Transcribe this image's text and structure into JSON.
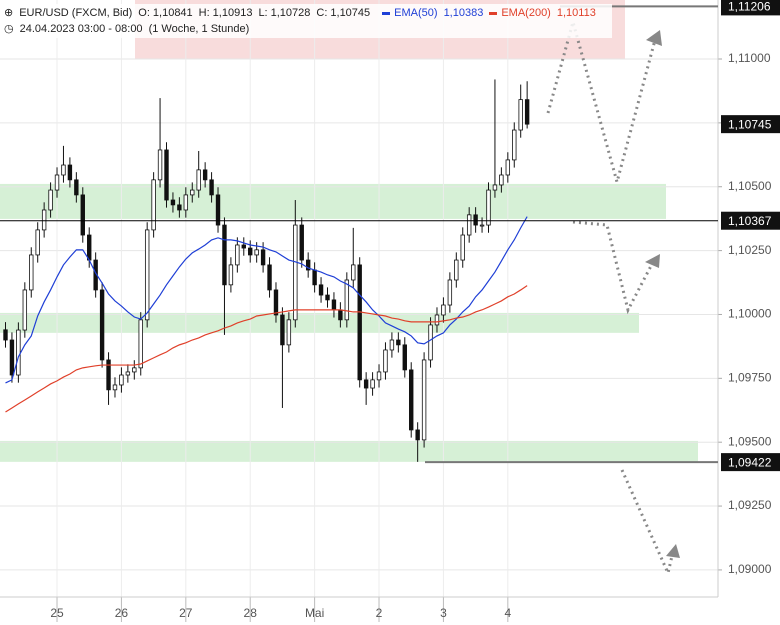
{
  "chart_data": {
    "type": "candlestick",
    "header": {
      "symbol": "EUR/USD (FXCM, Bid)",
      "ohlc": [
        {
          "key": "O:",
          "value": "1,10841"
        },
        {
          "key": "H:",
          "value": "1,10913"
        },
        {
          "key": "L:",
          "value": "1,10728"
        },
        {
          "key": "C:",
          "value": "1,10745"
        }
      ],
      "date": "24.04.2023 03:00 - 08:00",
      "interval": "(1 Woche, 1 Stunde)"
    },
    "categories": [
      null,
      null,
      null,
      null,
      null,
      null,
      null,
      null,
      "25",
      null,
      null,
      null,
      null,
      null,
      null,
      null,
      null,
      null,
      "26",
      null,
      null,
      null,
      null,
      null,
      null,
      null,
      null,
      null,
      "27",
      null,
      null,
      null,
      null,
      null,
      null,
      null,
      null,
      null,
      "28",
      null,
      null,
      null,
      null,
      null,
      null,
      null,
      null,
      null,
      "Mai",
      null,
      null,
      null,
      null,
      null,
      null,
      null,
      null,
      null,
      "2",
      null,
      null,
      null,
      null,
      null,
      null,
      null,
      null,
      null,
      "3",
      null,
      null,
      null,
      null,
      null,
      null,
      null,
      null,
      null,
      "4",
      null,
      null,
      null
    ],
    "open": [
      1.0994,
      1.099,
      1.09763,
      1.09939,
      1.10096,
      1.10233,
      1.10331,
      1.10409,
      1.10487,
      1.10546,
      1.10585,
      1.10527,
      1.10468,
      1.10311,
      1.10213,
      1.10096,
      1.09822,
      1.09705,
      1.09724,
      1.09763,
      1.09775,
      1.09791,
      1.09979,
      1.10331,
      1.10527,
      1.10644,
      1.10448,
      1.10429,
      1.10409,
      1.10468,
      1.10487,
      1.10566,
      1.10527,
      1.10468,
      1.1035,
      1.10116,
      1.10194,
      1.10272,
      1.1026,
      1.10233,
      1.10253,
      1.10194,
      1.10096,
      1.09998,
      1.09881,
      1.09979,
      1.1035,
      1.10213,
      1.10174,
      1.10116,
      1.10076,
      1.10057,
      1.10018,
      1.09979,
      1.10135,
      1.10194,
      1.09744,
      1.09712,
      1.09744,
      1.09775,
      1.09861,
      1.099,
      1.09881,
      1.09783,
      1.09548,
      1.09509,
      1.09822,
      1.09959,
      1.09998,
      1.10037,
      1.10135,
      1.10213,
      1.10311,
      1.1039,
      1.1035,
      1.1035,
      1.10487,
      1.10507,
      1.10546,
      1.10605,
      1.10722,
      1.10841
    ],
    "high": [
      1.0997,
      1.0993,
      1.09969,
      1.10126,
      1.10263,
      1.10361,
      1.10439,
      1.10517,
      1.10576,
      1.1066,
      1.10615,
      1.10557,
      1.10498,
      1.10341,
      1.10243,
      1.10126,
      1.09852,
      1.09754,
      1.09793,
      1.09805,
      1.09821,
      1.10009,
      1.10361,
      1.10557,
      1.10847,
      1.10674,
      1.10478,
      1.10459,
      1.10498,
      1.10517,
      1.1064,
      1.10596,
      1.10557,
      1.10498,
      1.1038,
      1.10224,
      1.10302,
      1.10302,
      1.1029,
      1.10283,
      1.10283,
      1.10224,
      1.10126,
      1.10028,
      1.10009,
      1.10448,
      1.1038,
      1.10243,
      1.10204,
      1.10146,
      1.10106,
      1.10087,
      1.10048,
      1.10165,
      1.10339,
      1.10224,
      1.09774,
      1.09774,
      1.09805,
      1.09891,
      1.0993,
      1.0993,
      1.09911,
      1.09813,
      1.09578,
      1.09852,
      1.09989,
      1.10028,
      1.10067,
      1.10165,
      1.10243,
      1.10341,
      1.1042,
      1.1042,
      1.1038,
      1.10517,
      1.1092,
      1.10576,
      1.10635,
      1.10752,
      1.109,
      1.10913
    ],
    "low": [
      1.0987,
      1.09733,
      1.09733,
      1.09909,
      1.10066,
      1.10203,
      1.10301,
      1.10379,
      1.10457,
      1.10516,
      1.10497,
      1.10438,
      1.10281,
      1.10183,
      1.10066,
      1.09792,
      1.09646,
      1.09675,
      1.09694,
      1.09733,
      1.09745,
      1.09761,
      1.09949,
      1.10301,
      1.10497,
      1.10418,
      1.10399,
      1.10379,
      1.10379,
      1.10438,
      1.10457,
      1.10497,
      1.10438,
      1.1032,
      1.0992,
      1.10086,
      1.10164,
      1.1023,
      1.10203,
      1.10203,
      1.10164,
      1.10066,
      1.09968,
      1.09634,
      1.09851,
      1.09949,
      1.10183,
      1.10144,
      1.10086,
      1.10046,
      1.10027,
      1.09988,
      1.09949,
      1.09949,
      1.10105,
      1.09714,
      1.09646,
      1.09682,
      1.09714,
      1.09745,
      1.09831,
      1.09851,
      1.09753,
      1.09518,
      1.09423,
      1.09479,
      1.09792,
      1.09929,
      1.09968,
      1.10007,
      1.10105,
      1.10183,
      1.10281,
      1.1032,
      1.1032,
      1.1032,
      1.10457,
      1.10477,
      1.10516,
      1.10575,
      1.10692,
      1.10728
    ],
    "close": [
      1.099,
      1.09763,
      1.09939,
      1.10096,
      1.10233,
      1.10331,
      1.10409,
      1.10487,
      1.10546,
      1.10585,
      1.10527,
      1.10468,
      1.10311,
      1.10213,
      1.10096,
      1.09822,
      1.09705,
      1.09724,
      1.09763,
      1.09775,
      1.09791,
      1.09979,
      1.10331,
      1.10527,
      1.10644,
      1.10448,
      1.10429,
      1.10409,
      1.10468,
      1.10487,
      1.10566,
      1.10527,
      1.10468,
      1.1035,
      1.10116,
      1.10194,
      1.10272,
      1.1026,
      1.10233,
      1.10253,
      1.10194,
      1.10096,
      1.09998,
      1.09881,
      1.09979,
      1.1035,
      1.10213,
      1.10174,
      1.10116,
      1.10076,
      1.10057,
      1.10018,
      1.09979,
      1.10135,
      1.10194,
      1.09744,
      1.09712,
      1.09744,
      1.09775,
      1.09861,
      1.099,
      1.09881,
      1.09783,
      1.09548,
      1.09509,
      1.09822,
      1.09959,
      1.09998,
      1.10037,
      1.10135,
      1.10213,
      1.10311,
      1.1039,
      1.1035,
      1.1035,
      1.10487,
      1.10507,
      1.10546,
      1.10605,
      1.10722,
      1.10841,
      1.10745
    ],
    "series": [
      {
        "name": "EMA(50)",
        "color": "#1f3fd6",
        "last_label": "1,10383",
        "values": [
          1.09732,
          1.09744,
          1.09834,
          1.09881,
          1.09916,
          1.09994,
          1.10049,
          1.10096,
          1.10147,
          1.10194,
          1.10225,
          1.10253,
          1.10253,
          1.10213,
          1.10162,
          1.10123,
          1.1008,
          1.10053,
          1.10033,
          1.1001,
          1.0999,
          1.09982,
          1.10006,
          1.10041,
          1.10076,
          1.10116,
          1.10151,
          1.10186,
          1.10217,
          1.10241,
          1.10256,
          1.10272,
          1.10292,
          1.103,
          1.10292,
          1.10292,
          1.10288,
          1.1028,
          1.10272,
          1.10268,
          1.10264,
          1.10253,
          1.10245,
          1.10229,
          1.10213,
          1.10206,
          1.10198,
          1.10182,
          1.10174,
          1.10166,
          1.10155,
          1.10147,
          1.10131,
          1.10119,
          1.10104,
          1.10076,
          1.10049,
          1.10018,
          1.09994,
          1.09967,
          1.09955,
          1.09943,
          1.09932,
          1.09916,
          1.09889,
          1.09885,
          1.099,
          1.09916,
          1.09928,
          1.09959,
          1.09982,
          1.1001,
          1.10033,
          1.10069,
          1.10096,
          1.10131,
          1.10166,
          1.10209,
          1.10253,
          1.10292,
          1.10339,
          1.10383
        ]
      },
      {
        "name": "EMA(200)",
        "color": "#e0402a",
        "last_label": "1,10113",
        "values": [
          1.09618,
          1.09634,
          1.0965,
          1.09665,
          1.09681,
          1.09697,
          1.09712,
          1.09728,
          1.0974,
          1.09755,
          1.09767,
          1.09783,
          1.09791,
          1.09795,
          1.09799,
          1.09802,
          1.09802,
          1.09802,
          1.09802,
          1.09802,
          1.09802,
          1.09806,
          1.09818,
          1.0983,
          1.09842,
          1.09853,
          1.09869,
          1.09881,
          1.09889,
          1.099,
          1.09908,
          1.0992,
          1.09928,
          1.09936,
          1.09947,
          1.09955,
          1.09967,
          1.09975,
          1.09982,
          1.09994,
          1.09998,
          1.10002,
          1.10006,
          1.1001,
          1.10014,
          1.10018,
          1.10018,
          1.10018,
          1.10018,
          1.10018,
          1.10018,
          1.10018,
          1.10018,
          1.10014,
          1.1001,
          1.1001,
          1.10006,
          1.10002,
          1.09998,
          1.09994,
          1.09986,
          1.09982,
          1.09975,
          1.09971,
          1.09971,
          1.09971,
          1.09971,
          1.09971,
          1.09975,
          1.09979,
          1.09986,
          1.0999,
          1.09998,
          1.1001,
          1.10018,
          1.10029,
          1.10041,
          1.10053,
          1.10069,
          1.1008,
          1.10096,
          1.10113
        ]
      }
    ],
    "ylim": [
      1.08894,
      1.11231
    ],
    "yticks": [
      {
        "value": 1.09,
        "label": "1,09000"
      },
      {
        "value": 1.0925,
        "label": "1,09250"
      },
      {
        "value": 1.095,
        "label": "1,09500"
      },
      {
        "value": 1.0975,
        "label": "1,09750"
      },
      {
        "value": 1.1,
        "label": "1,10000"
      },
      {
        "value": 1.1025,
        "label": "1,10250"
      },
      {
        "value": 1.105,
        "label": "1,10500"
      },
      {
        "value": 1.1075,
        "label": "1,10750"
      },
      {
        "value": 1.11,
        "label": "1,11000"
      }
    ],
    "grid": true,
    "zones": [
      {
        "from": 1.11231,
        "to": 1.11,
        "color": "#f8dcdc"
      },
      {
        "from": 1.10511,
        "to": 1.10374,
        "color": "#d6f0d6"
      },
      {
        "from": 1.10006,
        "to": 1.09928,
        "color": "#d6f0d6"
      },
      {
        "from": 1.09505,
        "to": 1.09423,
        "color": "#d6f0d6"
      }
    ],
    "levels": [
      {
        "value": 1.11206,
        "label": "1,11206",
        "color": "#777777"
      },
      {
        "value": 1.10745,
        "label": "1,10745",
        "color": null
      },
      {
        "value": 1.10367,
        "label": "1,10367",
        "color": "#000000"
      },
      {
        "value": 1.09422,
        "label": "1,09422",
        "color": "#777777"
      }
    ]
  }
}
